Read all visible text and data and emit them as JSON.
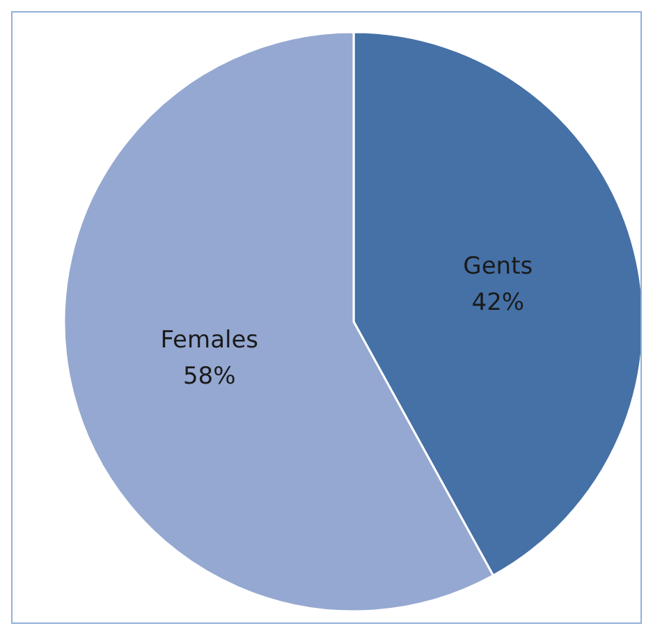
{
  "chart_data": {
    "type": "pie",
    "categories": [
      "Gents",
      "Females"
    ],
    "values": [
      42,
      58
    ],
    "value_labels": [
      "42%",
      "58%"
    ],
    "colors": [
      "#4671a6",
      "#95a8d1"
    ],
    "legend": false
  }
}
